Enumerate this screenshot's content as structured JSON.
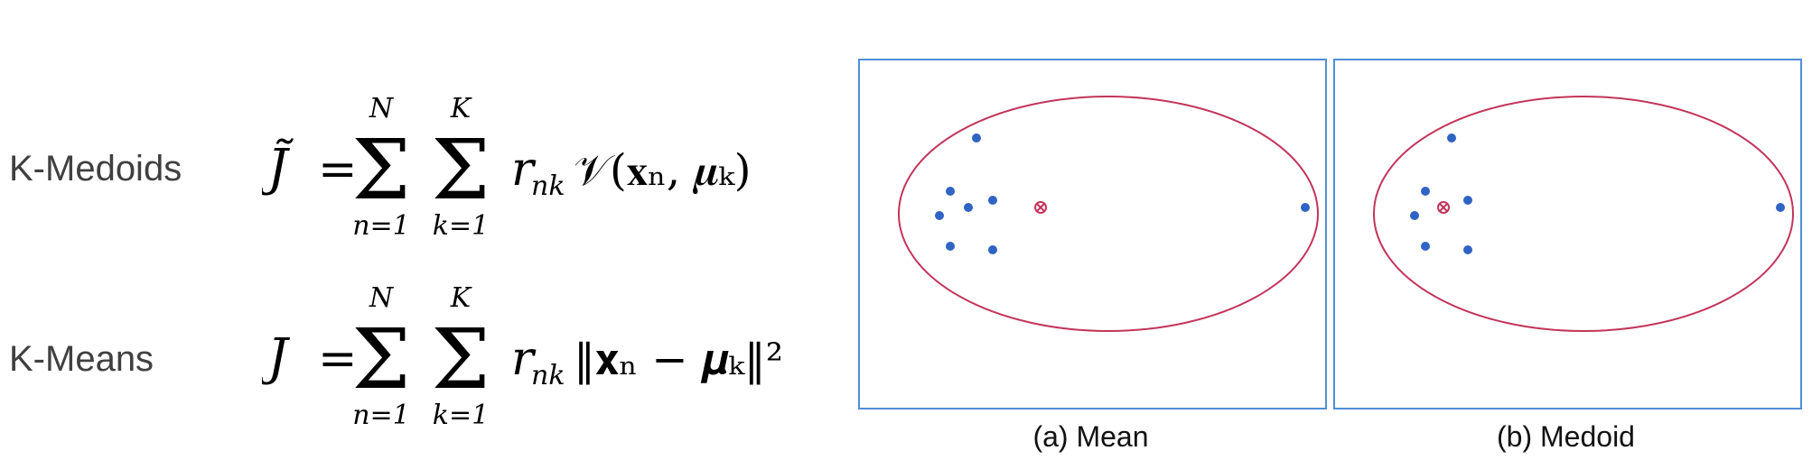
{
  "rows": [
    {
      "label": "K-Medoids",
      "lhs": "J̃",
      "dissim": "𝒱(𝐱ₙ, 𝝁ₖ)"
    },
    {
      "label": "K-Means",
      "lhs": "J",
      "dissim": "‖𝐱ₙ − 𝝁ₖ‖²"
    }
  ],
  "formula_parts": {
    "eq": "=",
    "sum_upper_1": "N",
    "sum_lower_1": "n=1",
    "sum_upper_2": "K",
    "sum_lower_2": "k=1",
    "r": "r",
    "r_sub": "nk",
    "sigma": "Σ"
  },
  "panels": [
    {
      "caption": "(a) Mean"
    },
    {
      "caption": "(b) Medoid"
    }
  ],
  "colors": {
    "panel_border": "#4f8fd6",
    "ellipse": "#c2355a",
    "points": "#2f63c4",
    "center": "#c2355a"
  },
  "icons": [
    "center-marker-icon"
  ]
}
